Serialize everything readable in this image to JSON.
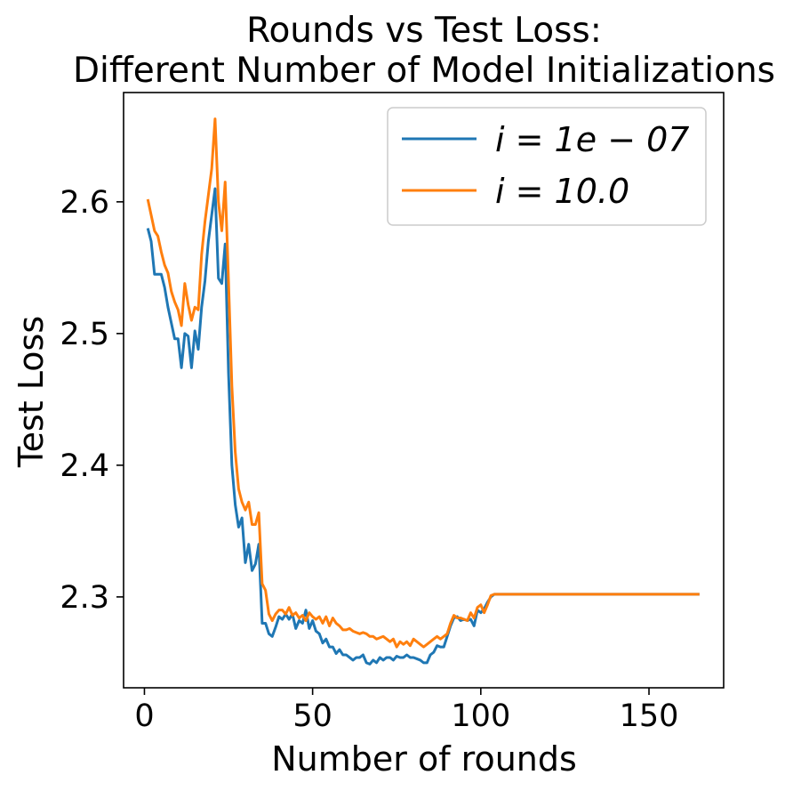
{
  "chart_data": {
    "type": "line",
    "title": [
      "Rounds vs Test Loss:",
      "Different Number of Model Initializations"
    ],
    "xlabel": "Number of rounds",
    "ylabel": "Test Loss",
    "xlim": [
      -6.2,
      172.2
    ],
    "ylim": [
      2.231,
      2.683
    ],
    "xticks": [
      0,
      50,
      100,
      150
    ],
    "xtick_labels": [
      "0",
      "50",
      "100",
      "150"
    ],
    "yticks": [
      2.3,
      2.4,
      2.5,
      2.6
    ],
    "ytick_labels": [
      "2.3",
      "2.4",
      "2.5",
      "2.6"
    ],
    "grid": false,
    "legend_position": "upper-right",
    "series": [
      {
        "name": "i = 1e-07",
        "legend_label": "i = 1e − 07",
        "color": "#1f77b4",
        "x": [
          1,
          2,
          3,
          4,
          5,
          6,
          7,
          8,
          9,
          10,
          11,
          12,
          13,
          14,
          15,
          16,
          17,
          18,
          19,
          20,
          21,
          22,
          23,
          24,
          25,
          26,
          27,
          28,
          29,
          30,
          31,
          32,
          33,
          34,
          35,
          36,
          37,
          38,
          39,
          40,
          41,
          42,
          43,
          44,
          45,
          46,
          47,
          48,
          49,
          50,
          51,
          52,
          53,
          54,
          55,
          56,
          57,
          58,
          59,
          60,
          61,
          62,
          63,
          64,
          65,
          66,
          67,
          68,
          69,
          70,
          71,
          72,
          73,
          74,
          75,
          76,
          77,
          78,
          79,
          80,
          81,
          82,
          83,
          84,
          85,
          86,
          87,
          88,
          89,
          90,
          91,
          92,
          93,
          94,
          95,
          96,
          97,
          98,
          99,
          100,
          101,
          102,
          103,
          104,
          105,
          106,
          107,
          108,
          109,
          110,
          111,
          112,
          113,
          114,
          115,
          116,
          117,
          118,
          119,
          120,
          121,
          122,
          123,
          124,
          125,
          126,
          127,
          128,
          129,
          130,
          131,
          132,
          133,
          134,
          135,
          136,
          137,
          138,
          139,
          140,
          141,
          142,
          143,
          144,
          145,
          146,
          147,
          148,
          149,
          150,
          151,
          152,
          153,
          154,
          155,
          156,
          157,
          158,
          159,
          160,
          161,
          162,
          163,
          164,
          165
        ],
        "values": [
          2.58,
          2.57,
          2.545,
          2.545,
          2.545,
          2.535,
          2.52,
          2.508,
          2.496,
          2.496,
          2.474,
          2.5,
          2.498,
          2.474,
          2.502,
          2.488,
          2.52,
          2.54,
          2.57,
          2.59,
          2.61,
          2.542,
          2.538,
          2.568,
          2.47,
          2.4,
          2.37,
          2.353,
          2.36,
          2.326,
          2.34,
          2.32,
          2.325,
          2.34,
          2.28,
          2.28,
          2.272,
          2.27,
          2.277,
          2.285,
          2.283,
          2.287,
          2.283,
          2.287,
          2.276,
          2.282,
          2.28,
          2.29,
          2.276,
          2.282,
          2.274,
          2.272,
          2.265,
          2.268,
          2.262,
          2.262,
          2.257,
          2.26,
          2.256,
          2.256,
          2.254,
          2.252,
          2.254,
          2.254,
          2.256,
          2.25,
          2.249,
          2.252,
          2.25,
          2.254,
          2.252,
          2.254,
          2.254,
          2.252,
          2.255,
          2.254,
          2.254,
          2.256,
          2.254,
          2.254,
          2.253,
          2.252,
          2.25,
          2.25,
          2.256,
          2.258,
          2.263,
          2.262,
          2.262,
          2.27,
          2.278,
          2.284,
          2.285,
          2.282,
          2.283,
          2.282,
          2.283,
          2.278,
          2.29,
          2.288,
          2.291,
          2.296,
          2.3,
          2.302,
          2.302,
          2.302,
          2.302,
          2.302,
          2.302,
          2.302,
          2.302,
          2.302,
          2.302,
          2.302,
          2.302,
          2.302,
          2.302,
          2.302,
          2.302,
          2.302,
          2.302,
          2.302,
          2.302,
          2.302,
          2.302,
          2.302,
          2.302,
          2.302,
          2.302,
          2.302,
          2.302,
          2.302,
          2.302,
          2.302,
          2.302,
          2.302,
          2.302,
          2.302,
          2.302,
          2.302,
          2.302,
          2.302,
          2.302,
          2.302,
          2.302,
          2.302,
          2.302,
          2.302,
          2.302,
          2.302,
          2.302,
          2.302,
          2.302,
          2.302,
          2.302,
          2.302,
          2.302,
          2.302,
          2.302,
          2.302,
          2.302,
          2.302,
          2.302,
          2.302,
          2.302
        ]
      },
      {
        "name": "i = 10.0",
        "legend_label": "i = 10.0",
        "color": "#ff7f0e",
        "x": [
          1,
          2,
          3,
          4,
          5,
          6,
          7,
          8,
          9,
          10,
          11,
          12,
          13,
          14,
          15,
          16,
          17,
          18,
          19,
          20,
          21,
          22,
          23,
          24,
          25,
          26,
          27,
          28,
          29,
          30,
          31,
          32,
          33,
          34,
          35,
          36,
          37,
          38,
          39,
          40,
          41,
          42,
          43,
          44,
          45,
          46,
          47,
          48,
          49,
          50,
          51,
          52,
          53,
          54,
          55,
          56,
          57,
          58,
          59,
          60,
          61,
          62,
          63,
          64,
          65,
          66,
          67,
          68,
          69,
          70,
          71,
          72,
          73,
          74,
          75,
          76,
          77,
          78,
          79,
          80,
          81,
          82,
          83,
          84,
          85,
          86,
          87,
          88,
          89,
          90,
          91,
          92,
          93,
          94,
          95,
          96,
          97,
          98,
          99,
          100,
          101,
          102,
          103,
          104,
          105,
          106,
          107,
          108,
          109,
          110,
          111,
          112,
          113,
          114,
          115,
          116,
          117,
          118,
          119,
          120,
          121,
          122,
          123,
          124,
          125,
          126,
          127,
          128,
          129,
          130,
          131,
          132,
          133,
          134,
          135,
          136,
          137,
          138,
          139,
          140,
          141,
          142,
          143,
          144,
          145,
          146,
          147,
          148,
          149,
          150,
          151,
          152,
          153,
          154,
          155,
          156,
          157,
          158,
          159,
          160,
          161,
          162,
          163,
          164,
          165
        ],
        "values": [
          2.602,
          2.59,
          2.578,
          2.574,
          2.562,
          2.552,
          2.546,
          2.532,
          2.524,
          2.518,
          2.506,
          2.538,
          2.522,
          2.51,
          2.52,
          2.518,
          2.56,
          2.585,
          2.605,
          2.625,
          2.663,
          2.6,
          2.578,
          2.615,
          2.54,
          2.46,
          2.41,
          2.382,
          2.372,
          2.366,
          2.372,
          2.355,
          2.355,
          2.364,
          2.31,
          2.305,
          2.287,
          2.282,
          2.287,
          2.29,
          2.29,
          2.287,
          2.292,
          2.286,
          2.288,
          2.284,
          2.286,
          2.282,
          2.288,
          2.285,
          2.283,
          2.285,
          2.28,
          2.285,
          2.278,
          2.284,
          2.28,
          2.278,
          2.275,
          2.275,
          2.276,
          2.274,
          2.273,
          2.272,
          2.273,
          2.272,
          2.27,
          2.27,
          2.268,
          2.269,
          2.27,
          2.268,
          2.266,
          2.268,
          2.262,
          2.266,
          2.264,
          2.266,
          2.263,
          2.268,
          2.266,
          2.264,
          2.262,
          2.264,
          2.266,
          2.268,
          2.27,
          2.268,
          2.27,
          2.272,
          2.28,
          2.286,
          2.284,
          2.284,
          2.283,
          2.282,
          2.288,
          2.284,
          2.292,
          2.294,
          2.288,
          2.294,
          2.301,
          2.302,
          2.302,
          2.302,
          2.302,
          2.302,
          2.302,
          2.302,
          2.302,
          2.302,
          2.302,
          2.302,
          2.302,
          2.302,
          2.302,
          2.302,
          2.302,
          2.302,
          2.302,
          2.302,
          2.302,
          2.302,
          2.302,
          2.302,
          2.302,
          2.302,
          2.302,
          2.302,
          2.302,
          2.302,
          2.302,
          2.302,
          2.302,
          2.302,
          2.302,
          2.302,
          2.302,
          2.302,
          2.302,
          2.302,
          2.302,
          2.302,
          2.302,
          2.302,
          2.302,
          2.302,
          2.302,
          2.302,
          2.302,
          2.302,
          2.302,
          2.302,
          2.302,
          2.302,
          2.302,
          2.302,
          2.302,
          2.302,
          2.302,
          2.302,
          2.302,
          2.302,
          2.302
        ]
      }
    ]
  }
}
